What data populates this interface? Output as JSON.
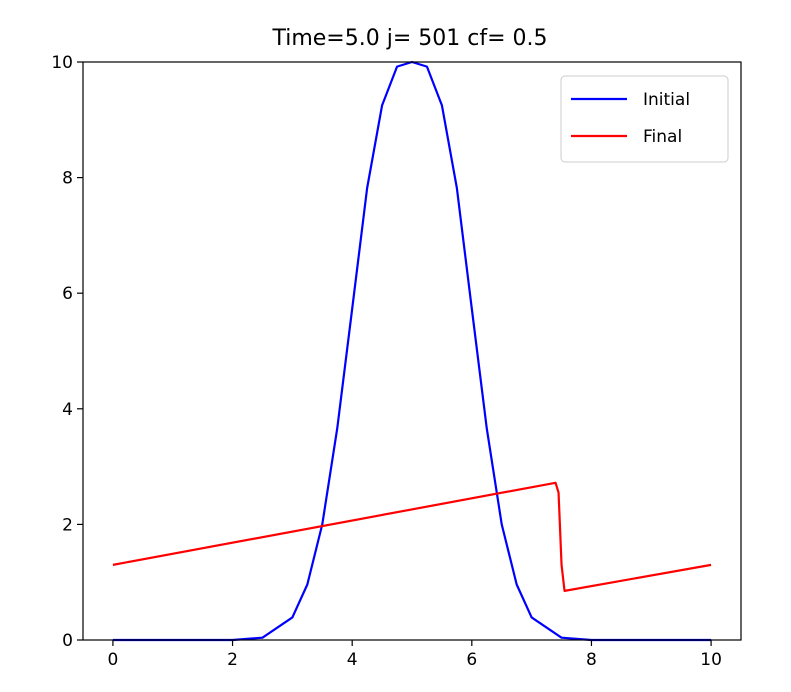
{
  "chart_data": {
    "type": "line",
    "title": "Time=5.0  j= 501  cf= 0.5",
    "xlabel": "",
    "ylabel": "",
    "xlim": [
      -0.5,
      10.5
    ],
    "ylim": [
      0,
      10
    ],
    "x_ticks": [
      0,
      2,
      4,
      6,
      8,
      10
    ],
    "y_ticks": [
      0,
      2,
      4,
      6,
      8,
      10
    ],
    "grid": false,
    "legend_position": "top-right",
    "series": [
      {
        "name": "Initial",
        "color": "#0000ff",
        "x": [
          0,
          2.0,
          2.5,
          3.0,
          3.25,
          3.5,
          3.75,
          4.0,
          4.25,
          4.5,
          4.75,
          5.0,
          5.25,
          5.5,
          5.75,
          6.0,
          6.25,
          6.5,
          6.75,
          7.0,
          7.5,
          8.0,
          10
        ],
        "y": [
          0,
          0.0,
          0.04,
          0.39,
          0.96,
          2.0,
          3.66,
          5.73,
          7.82,
          9.25,
          9.92,
          10.0,
          9.92,
          9.25,
          7.82,
          5.73,
          3.66,
          2.0,
          0.96,
          0.39,
          0.04,
          0.0,
          0
        ]
      },
      {
        "name": "Final",
        "color": "#ff0000",
        "x": [
          0,
          7.4,
          7.45,
          7.5,
          7.55,
          10
        ],
        "y": [
          1.3,
          2.72,
          2.55,
          1.3,
          0.85,
          1.3
        ]
      }
    ]
  }
}
